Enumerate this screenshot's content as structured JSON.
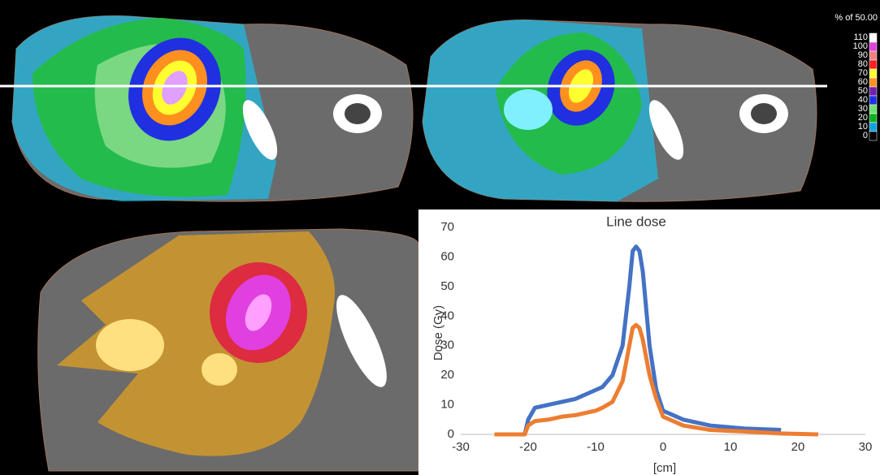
{
  "chart_data": {
    "type": "line",
    "title": "Line dose",
    "x_label": "[cm]",
    "y_label": "Dose (Gy)",
    "x": [
      -25,
      -20.5,
      -20,
      -19,
      -17,
      -15,
      -13,
      -10,
      -9,
      -7.5,
      -6,
      -5,
      -4.5,
      -4,
      -3.5,
      -3,
      -2,
      -1,
      0,
      3,
      7,
      12,
      17.5,
      23
    ],
    "series": [
      {
        "color": "#4472c4",
        "values": [
          null,
          0,
          5,
          9,
          10,
          11,
          12,
          15,
          16,
          20,
          30,
          50,
          62,
          63.5,
          62,
          55,
          30,
          15,
          8,
          5,
          3,
          2,
          1.5,
          null
        ]
      },
      {
        "color": "#ed7d31",
        "values": [
          0,
          0,
          3,
          4.5,
          5,
          6,
          6.5,
          8,
          9,
          11,
          18,
          30,
          36,
          37,
          36,
          32,
          20,
          12,
          6,
          3,
          1.5,
          1,
          0.3,
          0
        ]
      }
    ],
    "xlim": [
      -30,
      30
    ],
    "xticks": [
      -30,
      -20,
      -10,
      0,
      10,
      20,
      30
    ],
    "ylim": [
      0,
      70
    ],
    "yticks": [
      0,
      10,
      20,
      30,
      40,
      50,
      60,
      70
    ],
    "grid": false
  },
  "colorbar": {
    "title": "% of 50.00",
    "levels": [
      110,
      100,
      90,
      80,
      70,
      60,
      50,
      40,
      30,
      20,
      10,
      0
    ],
    "colors": [
      "#ffffff",
      "#e040e0",
      "#f08080",
      "#ff2020",
      "#ffff30",
      "#ff9020",
      "#7020b0",
      "#2030e0",
      "#70e070",
      "#10b020",
      "#10a0e0",
      "#000000"
    ]
  }
}
